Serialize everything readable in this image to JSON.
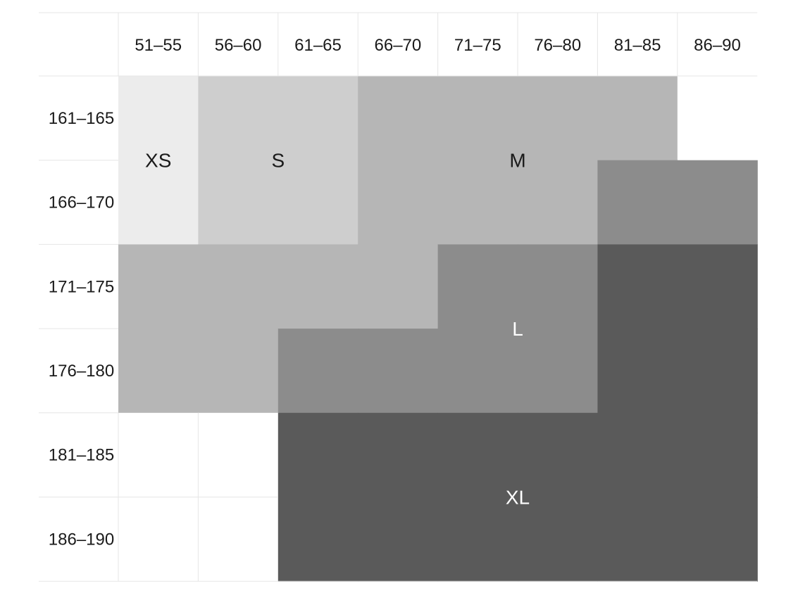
{
  "chart_data": {
    "type": "heatmap",
    "title": "",
    "xlabel": "",
    "ylabel": "",
    "columns": [
      "51–55",
      "56–60",
      "61–65",
      "66–70",
      "71–75",
      "76–80",
      "81–85",
      "86–90"
    ],
    "rows": [
      "161–165",
      "166–170",
      "171–175",
      "176–180",
      "181–185",
      "186–190"
    ],
    "size_colors": {
      "XS": "#ececec",
      "S": "#cecece",
      "M": "#b6b6b6",
      "L": "#8c8c8c",
      "XL": "#5a5a5a",
      "empty": "#ffffff"
    },
    "label_colors": {
      "XS": "#1a1a1a",
      "S": "#1a1a1a",
      "M": "#1a1a1a",
      "L": "#ffffff",
      "XL": "#ffffff"
    },
    "cells": [
      [
        "XS",
        "S",
        "S",
        "M",
        "M",
        "M",
        "M",
        ""
      ],
      [
        "XS",
        "S",
        "S",
        "M",
        "M",
        "M",
        "L",
        "L"
      ],
      [
        "M",
        "M",
        "M",
        "M",
        "L",
        "L",
        "XL",
        "XL"
      ],
      [
        "M",
        "M",
        "L",
        "L",
        "L",
        "L",
        "XL",
        "XL"
      ],
      [
        "",
        "",
        "XL",
        "XL",
        "XL",
        "XL",
        "XL",
        "XL"
      ],
      [
        "",
        "",
        "XL",
        "XL",
        "XL",
        "XL",
        "XL",
        "XL"
      ]
    ],
    "size_labels": [
      {
        "text": "XS",
        "row": 0.5,
        "col": 0
      },
      {
        "text": "S",
        "row": 0.5,
        "col": 1.5
      },
      {
        "text": "M",
        "row": 0.5,
        "col": 4.5
      },
      {
        "text": "L",
        "row": 2.5,
        "col": 4.5
      },
      {
        "text": "XL",
        "row": 4.5,
        "col": 4.5
      }
    ]
  }
}
